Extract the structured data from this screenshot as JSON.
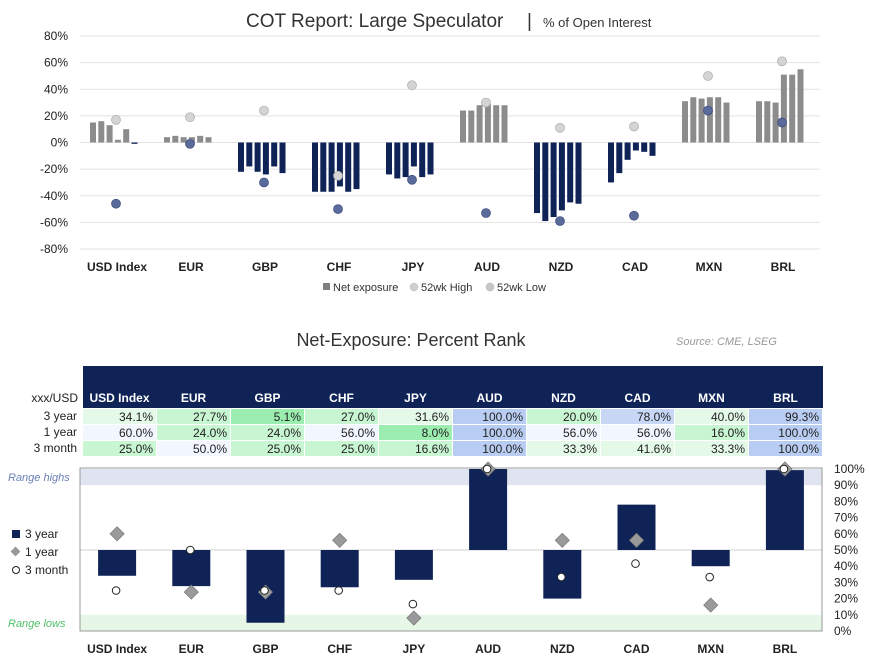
{
  "chart_data": [
    {
      "type": "bar",
      "title": "COT Report: Large Speculator",
      "subtitle": "% of Open Interest",
      "categories": [
        "USD Index",
        "EUR",
        "GBP",
        "CHF",
        "JPY",
        "AUD",
        "NZD",
        "CAD",
        "MXN",
        "BRL"
      ],
      "ylim": [
        -80,
        80
      ],
      "yticks": [
        "80%",
        "60%",
        "40%",
        "20%",
        "0%",
        "-20%",
        "-40%",
        "-60%",
        "-80%"
      ],
      "ytick_values": [
        80,
        60,
        40,
        20,
        0,
        -20,
        -40,
        -60,
        -80
      ],
      "grid": true,
      "legend": [
        "Net exposure",
        "52wk High",
        "52wk Low"
      ],
      "series": [
        {
          "name": "Net exposure",
          "values": [
            [
              15,
              16,
              13,
              2,
              10,
              -1
            ],
            [
              4,
              5,
              4,
              4,
              5,
              4
            ],
            [
              -22,
              -18,
              -22,
              -24,
              -18,
              -23
            ],
            [
              -37,
              -37,
              -37,
              -33,
              -37,
              -35
            ],
            [
              -24,
              -27,
              -26,
              -18,
              -26,
              -24
            ],
            [
              24,
              24,
              28,
              29,
              28,
              28
            ],
            [
              -53,
              -59,
              -56,
              -51,
              -45,
              -46
            ],
            [
              -30,
              -23,
              -13,
              -6,
              -7,
              -10
            ],
            [
              31,
              34,
              33,
              34,
              34,
              30
            ],
            [
              31,
              31,
              30,
              51,
              51,
              55
            ]
          ]
        },
        {
          "name": "52wk High",
          "values": [
            17,
            19,
            24,
            -25,
            43,
            30,
            11,
            12,
            50,
            61
          ]
        },
        {
          "name": "52wk Low",
          "values": [
            -46,
            -1,
            -30,
            -50,
            -28,
            -53,
            -59,
            -55,
            24,
            15
          ]
        }
      ]
    },
    {
      "type": "table",
      "title": "Net-Exposure: Percent Rank",
      "corner": "xxx/USD",
      "columns": [
        "USD Index",
        "EUR",
        "GBP",
        "CHF",
        "JPY",
        "AUD",
        "NZD",
        "CAD",
        "MXN",
        "BRL"
      ],
      "rows": [
        {
          "label": "3 year",
          "values": [
            "34.1%",
            "27.7%",
            "5.1%",
            "27.0%",
            "31.6%",
            "100.0%",
            "20.0%",
            "78.0%",
            "40.0%",
            "99.3%"
          ]
        },
        {
          "label": "1 year",
          "values": [
            "60.0%",
            "24.0%",
            "24.0%",
            "56.0%",
            "8.0%",
            "100.0%",
            "56.0%",
            "56.0%",
            "16.0%",
            "100.0%"
          ]
        },
        {
          "label": "3 month",
          "values": [
            "25.0%",
            "50.0%",
            "25.0%",
            "25.0%",
            "16.6%",
            "100.0%",
            "33.3%",
            "41.6%",
            "33.3%",
            "100.0%"
          ]
        }
      ]
    },
    {
      "type": "bar",
      "categories": [
        "USD Index",
        "EUR",
        "GBP",
        "CHF",
        "JPY",
        "AUD",
        "NZD",
        "CAD",
        "MXN",
        "BRL"
      ],
      "ylim": [
        0,
        100
      ],
      "baseline": 50,
      "yticks": [
        "100%",
        "90%",
        "80%",
        "70%",
        "60%",
        "50%",
        "40%",
        "30%",
        "20%",
        "10%",
        "0%"
      ],
      "ytick_values": [
        100,
        90,
        80,
        70,
        60,
        50,
        40,
        30,
        20,
        10,
        0
      ],
      "legend": [
        "3 year",
        "1 year",
        "3 month"
      ],
      "band_labels": {
        "high": "Range highs",
        "low": "Range lows"
      },
      "series": [
        {
          "name": "3 year",
          "values": [
            34.1,
            27.7,
            5.1,
            27.0,
            31.6,
            100.0,
            20.0,
            78.0,
            40.0,
            99.3
          ]
        },
        {
          "name": "1 year",
          "values": [
            60.0,
            24.0,
            24.0,
            56.0,
            8.0,
            100.0,
            56.0,
            56.0,
            16.0,
            100.0
          ]
        },
        {
          "name": "3 month",
          "values": [
            25.0,
            50.0,
            25.0,
            25.0,
            16.6,
            100.0,
            33.3,
            41.6,
            33.3,
            100.0
          ]
        }
      ]
    }
  ],
  "source": "Source: CME, LSEG",
  "colors": {
    "navy": "#0f2357",
    "grey_bar": "#8c8c8c",
    "low_marker": "#5a6a9a",
    "high_marker": "#cccccc",
    "band_high": "#dfe4f0",
    "band_low": "#e6f7e8"
  }
}
